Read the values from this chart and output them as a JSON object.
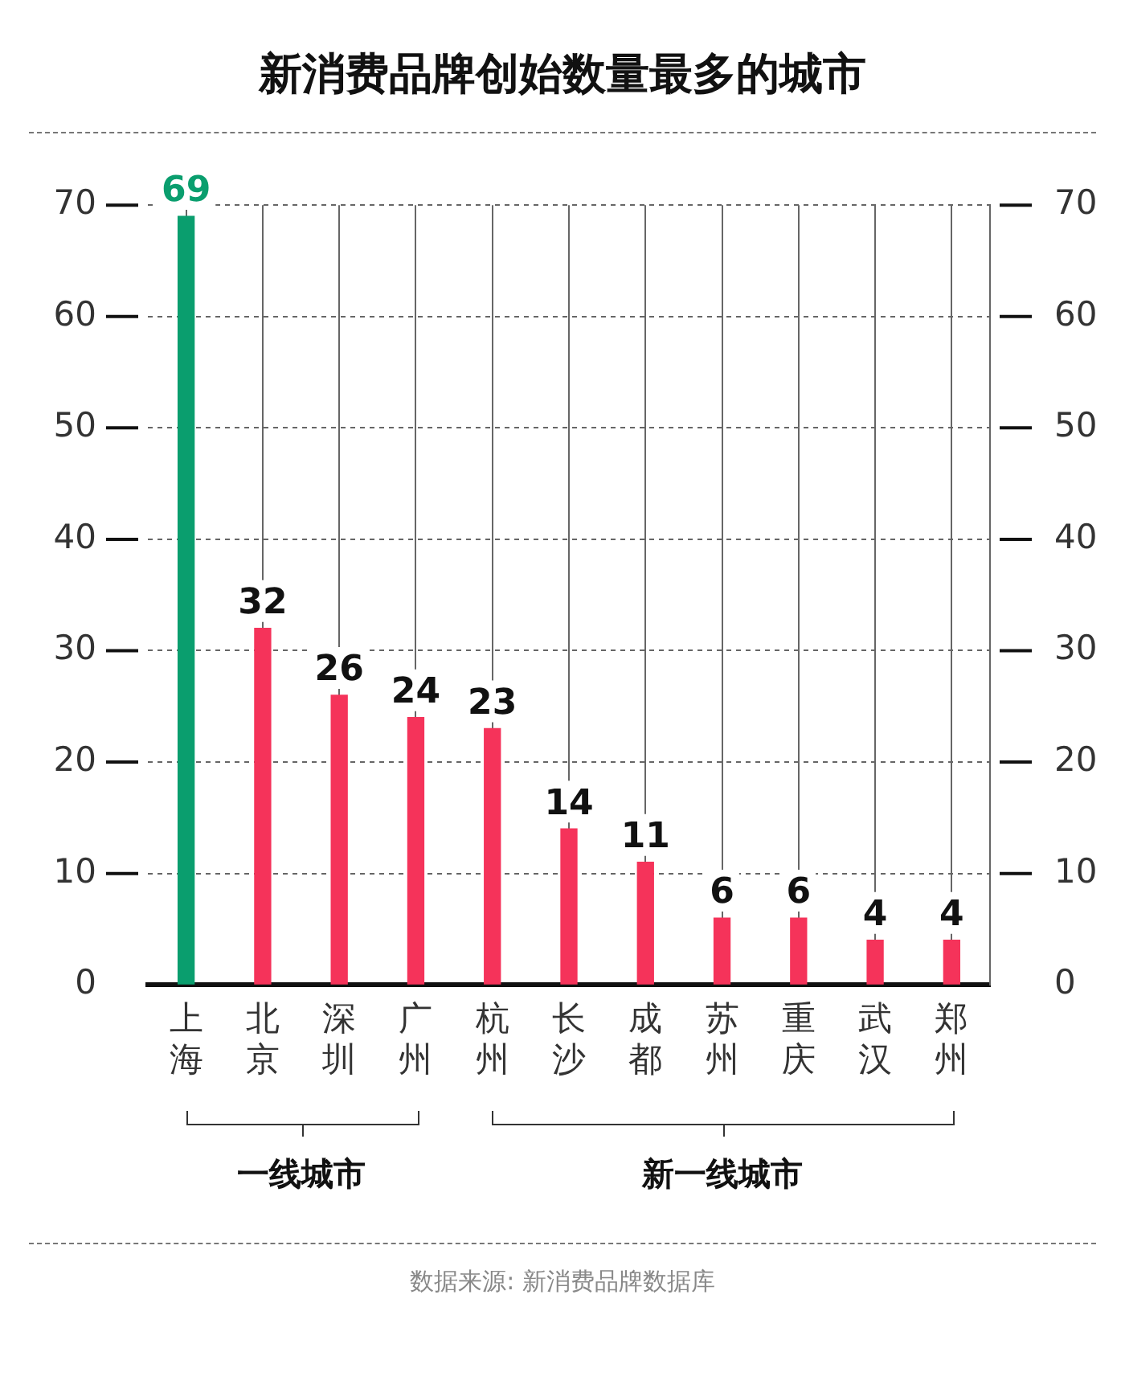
{
  "chart_data": {
    "type": "bar",
    "title": "新消费品牌创始数量最多的城市",
    "categories": [
      "上海",
      "北京",
      "深圳",
      "广州",
      "杭州",
      "长沙",
      "成都",
      "苏州",
      "重庆",
      "武汉",
      "郑州"
    ],
    "values": [
      69,
      32,
      26,
      24,
      23,
      14,
      11,
      6,
      6,
      4,
      4
    ],
    "colors": [
      "#0a9e6e",
      "#f5335a",
      "#f5335a",
      "#f5335a",
      "#f5335a",
      "#f5335a",
      "#f5335a",
      "#f5335a",
      "#f5335a",
      "#f5335a",
      "#f5335a"
    ],
    "ylim": [
      0,
      70
    ],
    "yticks": [
      0,
      10,
      20,
      30,
      40,
      50,
      60,
      70
    ],
    "y2lim": [
      0,
      70
    ],
    "y2ticks": [
      0,
      10,
      20,
      30,
      40,
      50,
      60,
      70
    ],
    "grid": true,
    "legend": false,
    "data_labels": true,
    "annotations": [
      "一线城市",
      "新一线城市",
      "数据来源: 新消费品牌数据库"
    ]
  }
}
